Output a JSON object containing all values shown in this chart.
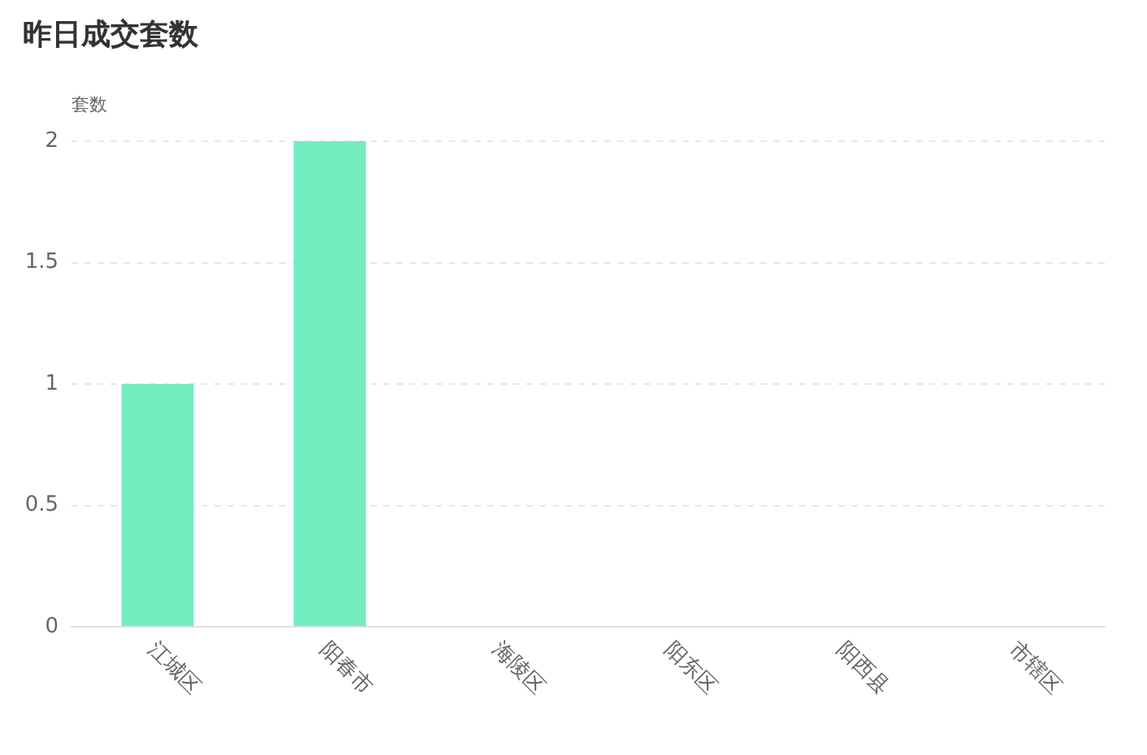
{
  "chart_data": {
    "type": "bar",
    "title": "昨日成交套数",
    "ylabel": "套数",
    "categories": [
      "江城区",
      "阳春市",
      "海陵区",
      "阳东区",
      "阳西县",
      "市辖区"
    ],
    "values": [
      1,
      2,
      0,
      0,
      0,
      0
    ],
    "color": "#73edbf",
    "ylim": [
      0,
      2
    ],
    "yticks": [
      0,
      0.5,
      1,
      1.5,
      2
    ],
    "grid": "y"
  }
}
